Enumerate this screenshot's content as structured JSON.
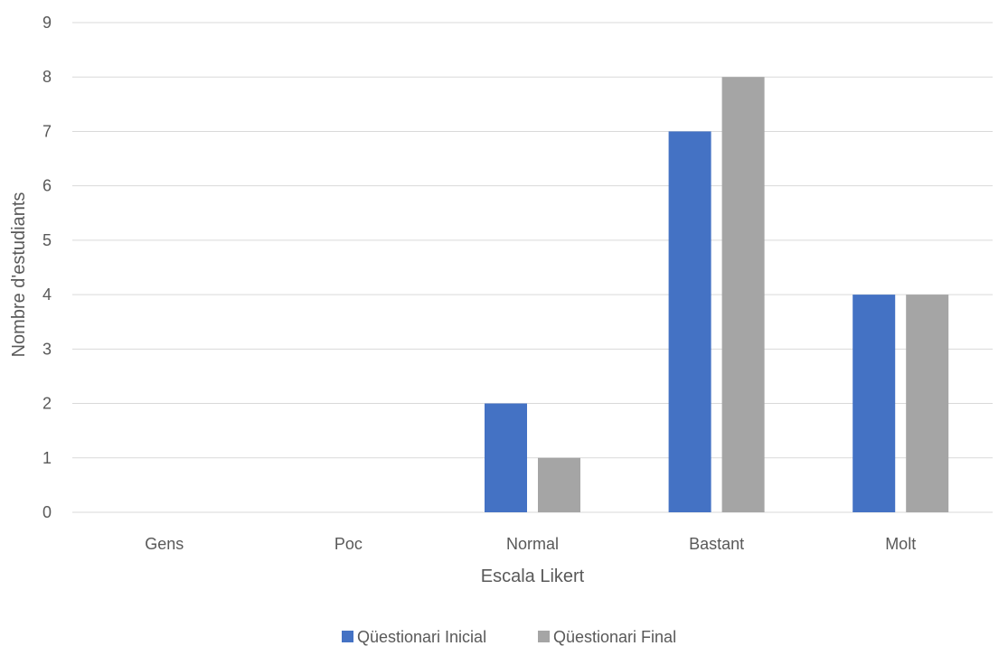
{
  "chart_data": {
    "type": "bar",
    "title": "",
    "xlabel": "Escala Likert",
    "ylabel": "Nombre d'estudiants",
    "categories": [
      "Gens",
      "Poc",
      "Normal",
      "Bastant",
      "Molt"
    ],
    "series": [
      {
        "name": "Qüestionari Inicial",
        "color": "#4472C4",
        "values": [
          0,
          0,
          2,
          7,
          4
        ]
      },
      {
        "name": "Qüestionari Final",
        "color": "#A5A5A5",
        "values": [
          0,
          0,
          1,
          8,
          4
        ]
      }
    ],
    "ylim": [
      0,
      9
    ],
    "yticks": [
      "0",
      "1",
      "2",
      "3",
      "4",
      "5",
      "6",
      "7",
      "8",
      "9"
    ],
    "grid": true,
    "legend_position": "bottom"
  }
}
